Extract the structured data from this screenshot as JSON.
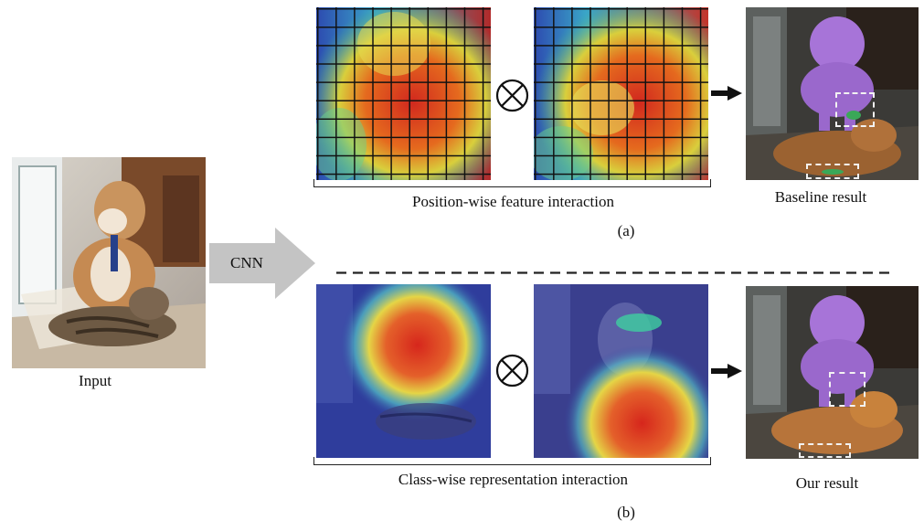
{
  "input_label": "Input",
  "cnn_label": "CNN",
  "top": {
    "caption": "Position-wise feature interaction",
    "result_label": "Baseline result",
    "sub_label": "(a)"
  },
  "bottom": {
    "caption": "Class-wise representation interaction",
    "result_label": "Our result",
    "sub_label": "(b)"
  },
  "colors": {
    "arrow_gray": "#c4c4c4",
    "dash_line": "#222222",
    "seg_purple": "#a774d8",
    "seg_orange": "#c8823c"
  },
  "icons": [
    "tensor-product-icon",
    "right-arrow-icon"
  ]
}
